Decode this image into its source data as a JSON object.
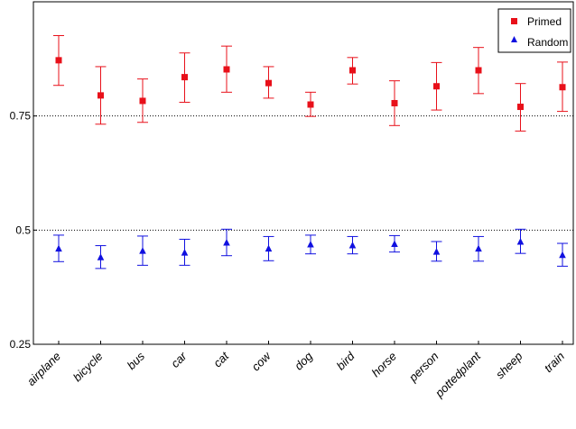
{
  "chart_data": {
    "type": "scatter",
    "title": "",
    "xlabel": "",
    "ylabel": "",
    "ylim": [
      0.25,
      1.0
    ],
    "yticks": [
      0.25,
      0.5,
      0.75
    ],
    "ytick_labels": [
      "0.25",
      "0.5",
      "0.75"
    ],
    "reference_lines": [
      0.75,
      0.5
    ],
    "categories": [
      "airplane",
      "bicycle",
      "bus",
      "car",
      "cat",
      "cow",
      "dog",
      "bird",
      "horse",
      "person",
      "pottedplant",
      "sheep",
      "train"
    ],
    "legend_position": "top-right",
    "series": [
      {
        "name": "Primed",
        "color": "#e8101a",
        "marker": "square",
        "values": [
          0.872,
          0.795,
          0.783,
          0.835,
          0.852,
          0.822,
          0.775,
          0.85,
          0.778,
          0.815,
          0.85,
          0.77,
          0.813
        ],
        "lower": [
          0.817,
          0.732,
          0.736,
          0.78,
          0.802,
          0.789,
          0.749,
          0.82,
          0.729,
          0.763,
          0.799,
          0.717,
          0.76
        ],
        "upper": [
          0.926,
          0.858,
          0.831,
          0.888,
          0.903,
          0.858,
          0.802,
          0.878,
          0.827,
          0.867,
          0.9,
          0.821,
          0.868
        ]
      },
      {
        "name": "Random",
        "color": "#1010e0",
        "marker": "triangle",
        "values": [
          0.46,
          0.441,
          0.455,
          0.451,
          0.473,
          0.46,
          0.469,
          0.467,
          0.47,
          0.453,
          0.46,
          0.475,
          0.446
        ],
        "lower": [
          0.431,
          0.416,
          0.423,
          0.423,
          0.444,
          0.433,
          0.448,
          0.448,
          0.452,
          0.432,
          0.432,
          0.449,
          0.421
        ],
        "upper": [
          0.489,
          0.466,
          0.487,
          0.48,
          0.502,
          0.486,
          0.489,
          0.486,
          0.488,
          0.475,
          0.486,
          0.502,
          0.471
        ]
      }
    ]
  }
}
